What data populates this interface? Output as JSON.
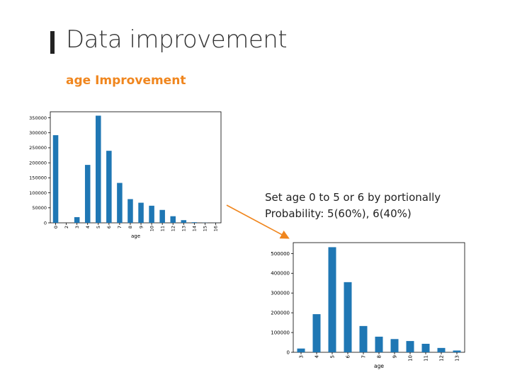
{
  "slide": {
    "title": "Data improvement",
    "subtitle": "age Improvement",
    "note_line1": "Set age 0 to 5 or 6 by portionally",
    "note_line2": "Probability: 5(60%), 6(40%)"
  },
  "colors": {
    "bar": "#1f77b4",
    "accent": "#f0861e",
    "arrow": "#f0861e"
  },
  "chart_data": [
    {
      "type": "bar",
      "title": "",
      "xlabel": "age",
      "ylabel": "",
      "categories": [
        "0",
        "2",
        "3",
        "4",
        "5",
        "6",
        "7",
        "8",
        "9",
        "10",
        "11",
        "12",
        "13",
        "14",
        "15",
        "16"
      ],
      "values": [
        292000,
        0,
        19000,
        193000,
        357000,
        240000,
        133000,
        79000,
        67000,
        57000,
        43000,
        22000,
        9000,
        2000,
        500,
        200
      ],
      "ylim": [
        0,
        370000
      ],
      "yticks": [
        0,
        50000,
        100000,
        150000,
        200000,
        250000,
        300000,
        350000
      ],
      "ytick_labels": [
        "0",
        "50000",
        "100000",
        "150000",
        "200000",
        "250000",
        "300000",
        "350000"
      ],
      "grid": false,
      "legend": "none"
    },
    {
      "type": "bar",
      "title": "",
      "xlabel": "age",
      "ylabel": "",
      "categories": [
        "3",
        "4",
        "5",
        "6",
        "7",
        "8",
        "9",
        "10",
        "11",
        "12",
        "13"
      ],
      "values": [
        19000,
        193000,
        532000,
        355000,
        133000,
        79000,
        67000,
        57000,
        43000,
        22000,
        9000
      ],
      "ylim": [
        0,
        555000
      ],
      "yticks": [
        0,
        100000,
        200000,
        300000,
        400000,
        500000
      ],
      "ytick_labels": [
        "0",
        "100000",
        "200000",
        "300000",
        "400000",
        "500000"
      ],
      "grid": false,
      "legend": "none"
    }
  ]
}
